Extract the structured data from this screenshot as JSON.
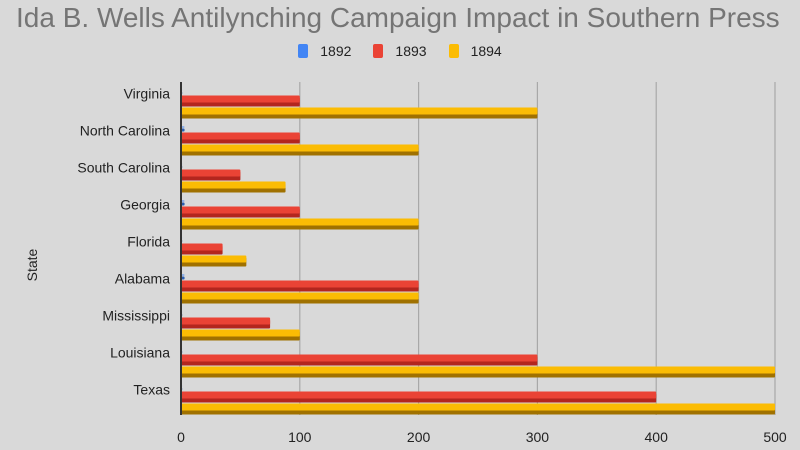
{
  "chart_data": {
    "type": "bar",
    "orientation": "horizontal",
    "title": "Ida B. Wells Antilynching Campaign Impact in Southern Press",
    "xlabel": "",
    "ylabel": "State",
    "xlim": [
      0,
      500
    ],
    "xticks": [
      0,
      100,
      200,
      300,
      400,
      500
    ],
    "grid": true,
    "legend_position": "top",
    "categories": [
      "Virginia",
      "North Carolina",
      "South Carolina",
      "Georgia",
      "Florida",
      "Alabama",
      "Mississippi",
      "Louisiana",
      "Texas"
    ],
    "series": [
      {
        "name": "1892",
        "color": "#4285f4",
        "values": [
          1,
          3,
          1,
          3,
          1,
          3,
          1,
          1,
          1
        ]
      },
      {
        "name": "1893",
        "color": "#ea4335",
        "values": [
          100,
          100,
          50,
          100,
          35,
          200,
          75,
          300,
          400
        ]
      },
      {
        "name": "1894",
        "color": "#fbbc04",
        "values": [
          300,
          200,
          88,
          200,
          55,
          200,
          100,
          500,
          500
        ]
      }
    ]
  }
}
